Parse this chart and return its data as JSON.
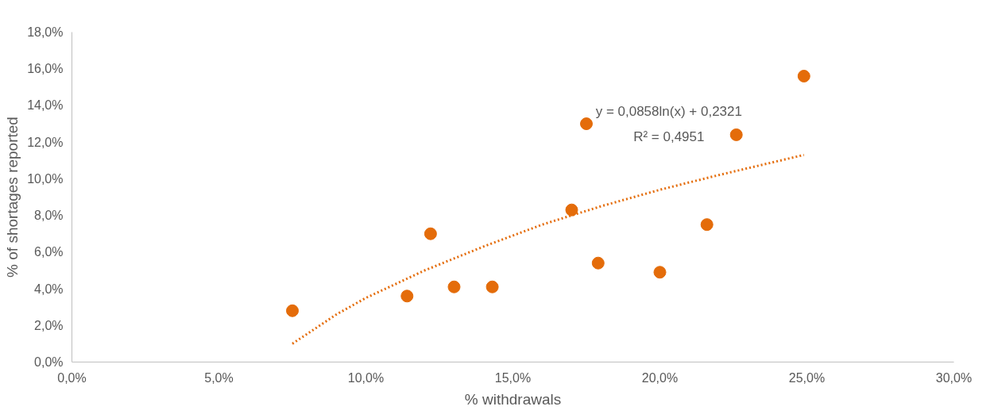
{
  "chart_data": {
    "type": "scatter",
    "xlabel": "% withdrawals",
    "ylabel": "% of shortages reported",
    "xlim": [
      0,
      30
    ],
    "ylim": [
      0,
      18
    ],
    "xticks": [
      {
        "value": 0,
        "label": "0,0%"
      },
      {
        "value": 5,
        "label": "5,0%"
      },
      {
        "value": 10,
        "label": "10,0%"
      },
      {
        "value": 15,
        "label": "15,0%"
      },
      {
        "value": 20,
        "label": "20,0%"
      },
      {
        "value": 25,
        "label": "25,0%"
      },
      {
        "value": 30,
        "label": "30,0%"
      }
    ],
    "yticks": [
      {
        "value": 0,
        "label": "0,0%"
      },
      {
        "value": 2,
        "label": "2,0%"
      },
      {
        "value": 4,
        "label": "4,0%"
      },
      {
        "value": 6,
        "label": "6,0%"
      },
      {
        "value": 8,
        "label": "8,0%"
      },
      {
        "value": 10,
        "label": "10,0%"
      },
      {
        "value": 12,
        "label": "12,0%"
      },
      {
        "value": 14,
        "label": "14,0%"
      },
      {
        "value": 16,
        "label": "16,0%"
      },
      {
        "value": 18,
        "label": "18,0%"
      }
    ],
    "grid": false,
    "series": [
      {
        "marker": "circle",
        "color": "#e46c0a",
        "x": [
          7.5,
          11.4,
          12.2,
          13.0,
          14.3,
          17.0,
          17.5,
          17.9,
          20.0,
          21.6,
          22.6,
          24.9
        ],
        "values": [
          2.8,
          3.6,
          7.0,
          4.1,
          4.1,
          8.3,
          13.0,
          5.4,
          4.9,
          7.5,
          12.4,
          15.6
        ]
      },
      {
        "type": "line",
        "line_style": "dotted",
        "color": "#e46c0a",
        "x": [
          7.5,
          9,
          10,
          12,
          14,
          16,
          18,
          20,
          22,
          24.9
        ],
        "values": [
          1.0,
          2.6,
          3.5,
          5.0,
          6.3,
          7.5,
          8.5,
          9.4,
          10.2,
          11.3
        ]
      }
    ],
    "annotations": [
      "y = 0,0858ln(x) + 0,2321",
      "R² = 0,4951"
    ]
  }
}
